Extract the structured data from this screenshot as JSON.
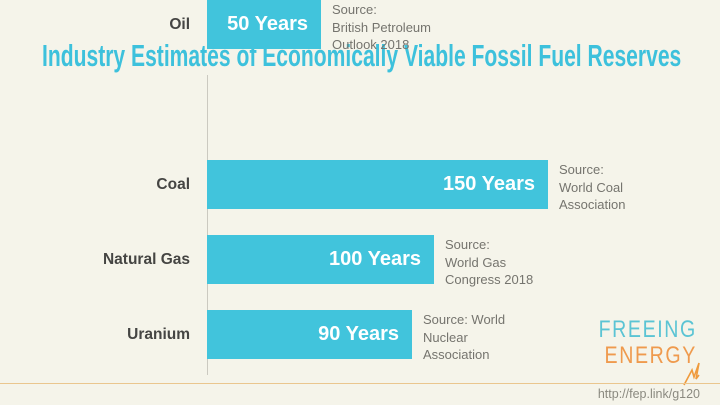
{
  "title": "Industry Estimates of Economically Viable Fossil Fuel Reserves",
  "chart_data": {
    "type": "bar",
    "orientation": "horizontal",
    "title": "Industry Estimates of Economically Viable Fossil Fuel Reserves",
    "unit": "Years",
    "xlim": [
      0,
      150
    ],
    "grid": false,
    "legend": "none",
    "categories": [
      "Coal",
      "Natural Gas",
      "Uranium",
      "Oil"
    ],
    "values": [
      150,
      100,
      90,
      50
    ],
    "rows": [
      {
        "label": "Coal",
        "value": 150,
        "value_label": "150 Years",
        "source": "Source:\nWorld Coal\nAssociation"
      },
      {
        "label": "Natural Gas",
        "value": 100,
        "value_label": "100 Years",
        "source": "Source:\nWorld Gas\nCongress 2018"
      },
      {
        "label": "Uranium",
        "value": 90,
        "value_label": "90 Years",
        "source": "Source: World\nNuclear\nAssociation"
      },
      {
        "label": "Oil",
        "value": 50,
        "value_label": "50 Years",
        "source": "Source:\nBritish Petroleum\nOutlook 2018"
      }
    ]
  },
  "footer": {
    "logo": {
      "line1": "FREEING",
      "line2": "ENERGY"
    },
    "url": "http://fep.link/g120",
    "lightning_icon": "lightning-bolt"
  },
  "colors": {
    "background": "#F5F4EA",
    "bar": "#41C4DC",
    "title": "#3DC1DC",
    "category_label": "#454543",
    "value_label": "#FFFFFF",
    "source_text": "#75746E",
    "axis_line": "#CBC9C0",
    "logo_teal": "#5BC4D4",
    "logo_orange": "#EF9A4D",
    "footer_rule": "#EAC68E",
    "url_text": "#8B8A80"
  }
}
